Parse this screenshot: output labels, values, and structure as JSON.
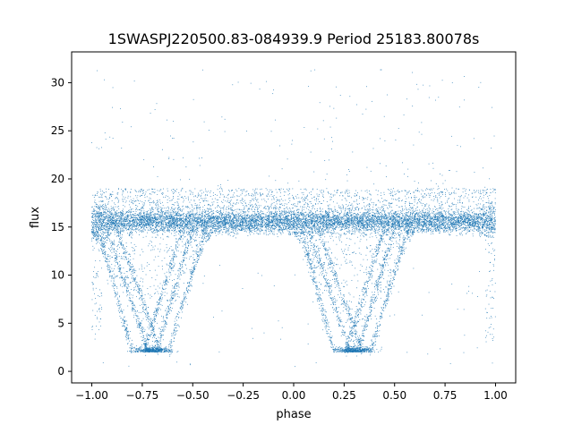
{
  "chart_data": {
    "type": "scatter",
    "title": "1SWASPJ220500.83-084939.9 Period 25183.80078s",
    "xlabel": "phase",
    "ylabel": "flux",
    "xlim": [
      -1.1,
      1.1
    ],
    "ylim": [
      -1.2,
      33.2
    ],
    "x_ticks": [
      -1.0,
      -0.75,
      -0.5,
      -0.25,
      0.0,
      0.25,
      0.5,
      0.75,
      1.0
    ],
    "x_tick_labels": [
      "−1.00",
      "−0.75",
      "−0.50",
      "−0.25",
      "0.00",
      "0.25",
      "0.50",
      "0.75",
      "1.00"
    ],
    "y_ticks": [
      0,
      5,
      10,
      15,
      20,
      25,
      30
    ],
    "y_tick_labels": [
      "0",
      "5",
      "10",
      "15",
      "20",
      "25",
      "30"
    ],
    "grid": false,
    "legend": "none",
    "marker_color": "#1f77b4",
    "series": [
      {
        "description_free": true,
        "baseline_band": {
          "x_range": [
            -1.0,
            1.0
          ],
          "y_center": 15.6,
          "y_spread": 1.5
        },
        "eclipse_minima": [
          {
            "x": -0.7,
            "y": 2.1
          },
          {
            "x": 0.3,
            "y": 2.1
          }
        ],
        "eclipse_branches": [
          {
            "x_start": -0.97,
            "y_start": 15.0,
            "x_end": -0.8,
            "y_end": 2.1
          },
          {
            "x_start": -0.93,
            "y_start": 15.0,
            "x_end": -0.72,
            "y_end": 2.1
          },
          {
            "x_start": -0.88,
            "y_start": 15.0,
            "x_end": -0.66,
            "y_end": 2.1
          },
          {
            "x_start": -0.62,
            "y_start": 2.1,
            "x_end": -0.43,
            "y_end": 15.0
          },
          {
            "x_start": -0.68,
            "y_start": 2.1,
            "x_end": -0.5,
            "y_end": 15.0
          },
          {
            "x_start": -0.74,
            "y_start": 2.1,
            "x_end": -0.55,
            "y_end": 15.0
          },
          {
            "x_start": 0.03,
            "y_start": 15.0,
            "x_end": 0.2,
            "y_end": 2.1
          },
          {
            "x_start": 0.07,
            "y_start": 15.0,
            "x_end": 0.28,
            "y_end": 2.1
          },
          {
            "x_start": 0.12,
            "y_start": 15.0,
            "x_end": 0.34,
            "y_end": 2.1
          },
          {
            "x_start": 0.38,
            "y_start": 2.1,
            "x_end": 0.57,
            "y_end": 15.0
          },
          {
            "x_start": 0.32,
            "y_start": 2.1,
            "x_end": 0.5,
            "y_end": 15.0
          },
          {
            "x_start": 0.26,
            "y_start": 2.1,
            "x_end": 0.45,
            "y_end": 15.0
          }
        ],
        "outliers_y_range": [
          0.5,
          31.5
        ]
      }
    ]
  }
}
